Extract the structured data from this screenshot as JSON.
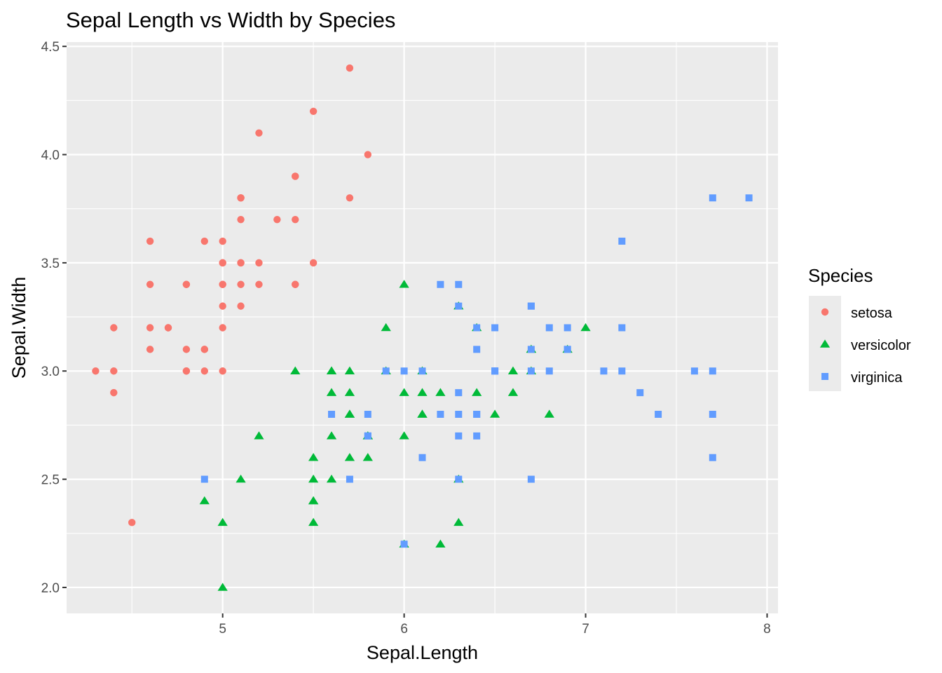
{
  "chart_data": {
    "type": "scatter",
    "title": "Sepal Length vs Width by Species",
    "xlabel": "Sepal.Length",
    "ylabel": "Sepal.Width",
    "xlim": [
      4.14,
      8.06
    ],
    "ylim": [
      1.88,
      4.52
    ],
    "x_ticks": [
      5,
      6,
      7,
      8
    ],
    "x_tick_labels": [
      "5",
      "6",
      "7",
      "8"
    ],
    "y_ticks": [
      2.0,
      2.5,
      3.0,
      3.5,
      4.0,
      4.5
    ],
    "y_tick_labels": [
      "2.0",
      "2.5",
      "3.0",
      "3.5",
      "4.0",
      "4.5"
    ],
    "grid": true,
    "legend": {
      "title": "Species",
      "position": "right"
    },
    "series": [
      {
        "name": "setosa",
        "color": "#F8766D",
        "shape": "circle",
        "x": [
          5.1,
          4.9,
          4.7,
          4.6,
          5.0,
          5.4,
          4.6,
          5.0,
          4.4,
          4.9,
          5.4,
          4.8,
          4.8,
          4.3,
          5.8,
          5.7,
          5.4,
          5.1,
          5.7,
          5.1,
          5.4,
          5.1,
          4.6,
          5.1,
          4.8,
          5.0,
          5.0,
          5.2,
          5.2,
          4.7,
          4.8,
          5.4,
          5.2,
          5.5,
          4.9,
          5.0,
          5.5,
          4.9,
          4.4,
          5.1,
          5.0,
          4.5,
          4.4,
          5.0,
          5.1,
          4.8,
          5.1,
          4.6,
          5.3,
          5.0
        ],
        "y": [
          3.5,
          3.0,
          3.2,
          3.1,
          3.6,
          3.9,
          3.4,
          3.4,
          2.9,
          3.1,
          3.7,
          3.4,
          3.0,
          3.0,
          4.0,
          4.4,
          3.9,
          3.5,
          3.8,
          3.8,
          3.4,
          3.7,
          3.6,
          3.3,
          3.4,
          3.0,
          3.4,
          3.5,
          3.4,
          3.2,
          3.1,
          3.4,
          4.1,
          4.2,
          3.1,
          3.2,
          3.5,
          3.6,
          3.0,
          3.4,
          3.5,
          2.3,
          3.2,
          3.5,
          3.8,
          3.0,
          3.8,
          3.2,
          3.7,
          3.3
        ]
      },
      {
        "name": "versicolor",
        "color": "#00BA38",
        "shape": "triangle",
        "x": [
          7.0,
          6.4,
          6.9,
          5.5,
          6.5,
          5.7,
          6.3,
          4.9,
          6.6,
          5.2,
          5.0,
          5.9,
          6.0,
          6.1,
          5.6,
          6.7,
          5.6,
          5.8,
          6.2,
          5.6,
          5.9,
          6.1,
          6.3,
          6.1,
          6.4,
          6.6,
          6.8,
          6.7,
          6.0,
          5.7,
          5.5,
          5.5,
          5.8,
          6.0,
          5.4,
          6.0,
          6.7,
          6.3,
          5.6,
          5.5,
          5.5,
          6.1,
          5.8,
          5.0,
          5.6,
          5.7,
          5.7,
          6.2,
          5.1,
          5.7
        ],
        "y": [
          3.2,
          3.2,
          3.1,
          2.3,
          2.8,
          2.8,
          3.3,
          2.4,
          2.9,
          2.7,
          2.0,
          3.0,
          2.2,
          2.9,
          2.9,
          3.1,
          3.0,
          2.7,
          2.2,
          2.5,
          3.2,
          2.8,
          2.5,
          2.8,
          2.9,
          3.0,
          2.8,
          3.0,
          2.9,
          2.6,
          2.4,
          2.4,
          2.7,
          2.7,
          3.0,
          3.4,
          3.1,
          2.3,
          3.0,
          2.5,
          2.6,
          3.0,
          2.6,
          2.3,
          2.7,
          3.0,
          2.9,
          2.9,
          2.5,
          2.8
        ]
      },
      {
        "name": "virginica",
        "color": "#619CFF",
        "shape": "square",
        "x": [
          6.3,
          5.8,
          7.1,
          6.3,
          6.5,
          7.6,
          4.9,
          7.3,
          6.7,
          7.2,
          6.5,
          6.4,
          6.8,
          5.7,
          5.8,
          6.4,
          6.5,
          7.7,
          7.7,
          6.0,
          6.9,
          5.6,
          7.7,
          6.3,
          6.7,
          7.2,
          6.2,
          6.1,
          6.4,
          7.2,
          7.4,
          7.9,
          6.4,
          6.3,
          6.1,
          7.7,
          6.3,
          6.4,
          6.0,
          6.9,
          6.7,
          6.9,
          5.8,
          6.8,
          6.7,
          6.7,
          6.3,
          6.5,
          6.2,
          5.9
        ],
        "y": [
          3.3,
          2.7,
          3.0,
          2.9,
          3.0,
          3.0,
          2.5,
          2.9,
          2.5,
          3.6,
          3.2,
          2.7,
          3.0,
          2.5,
          2.8,
          3.2,
          3.0,
          3.8,
          2.6,
          2.2,
          3.2,
          2.8,
          2.8,
          2.7,
          3.3,
          3.2,
          2.8,
          3.0,
          2.8,
          3.0,
          2.8,
          3.8,
          2.8,
          2.8,
          2.6,
          3.0,
          3.4,
          3.1,
          3.0,
          3.1,
          3.1,
          3.1,
          2.7,
          3.2,
          3.3,
          3.0,
          2.5,
          3.0,
          3.4,
          3.0
        ]
      }
    ]
  },
  "theme": {
    "panel_background": "#EBEBEB",
    "grid_major": "#FFFFFF",
    "tick_color": "#333333"
  }
}
